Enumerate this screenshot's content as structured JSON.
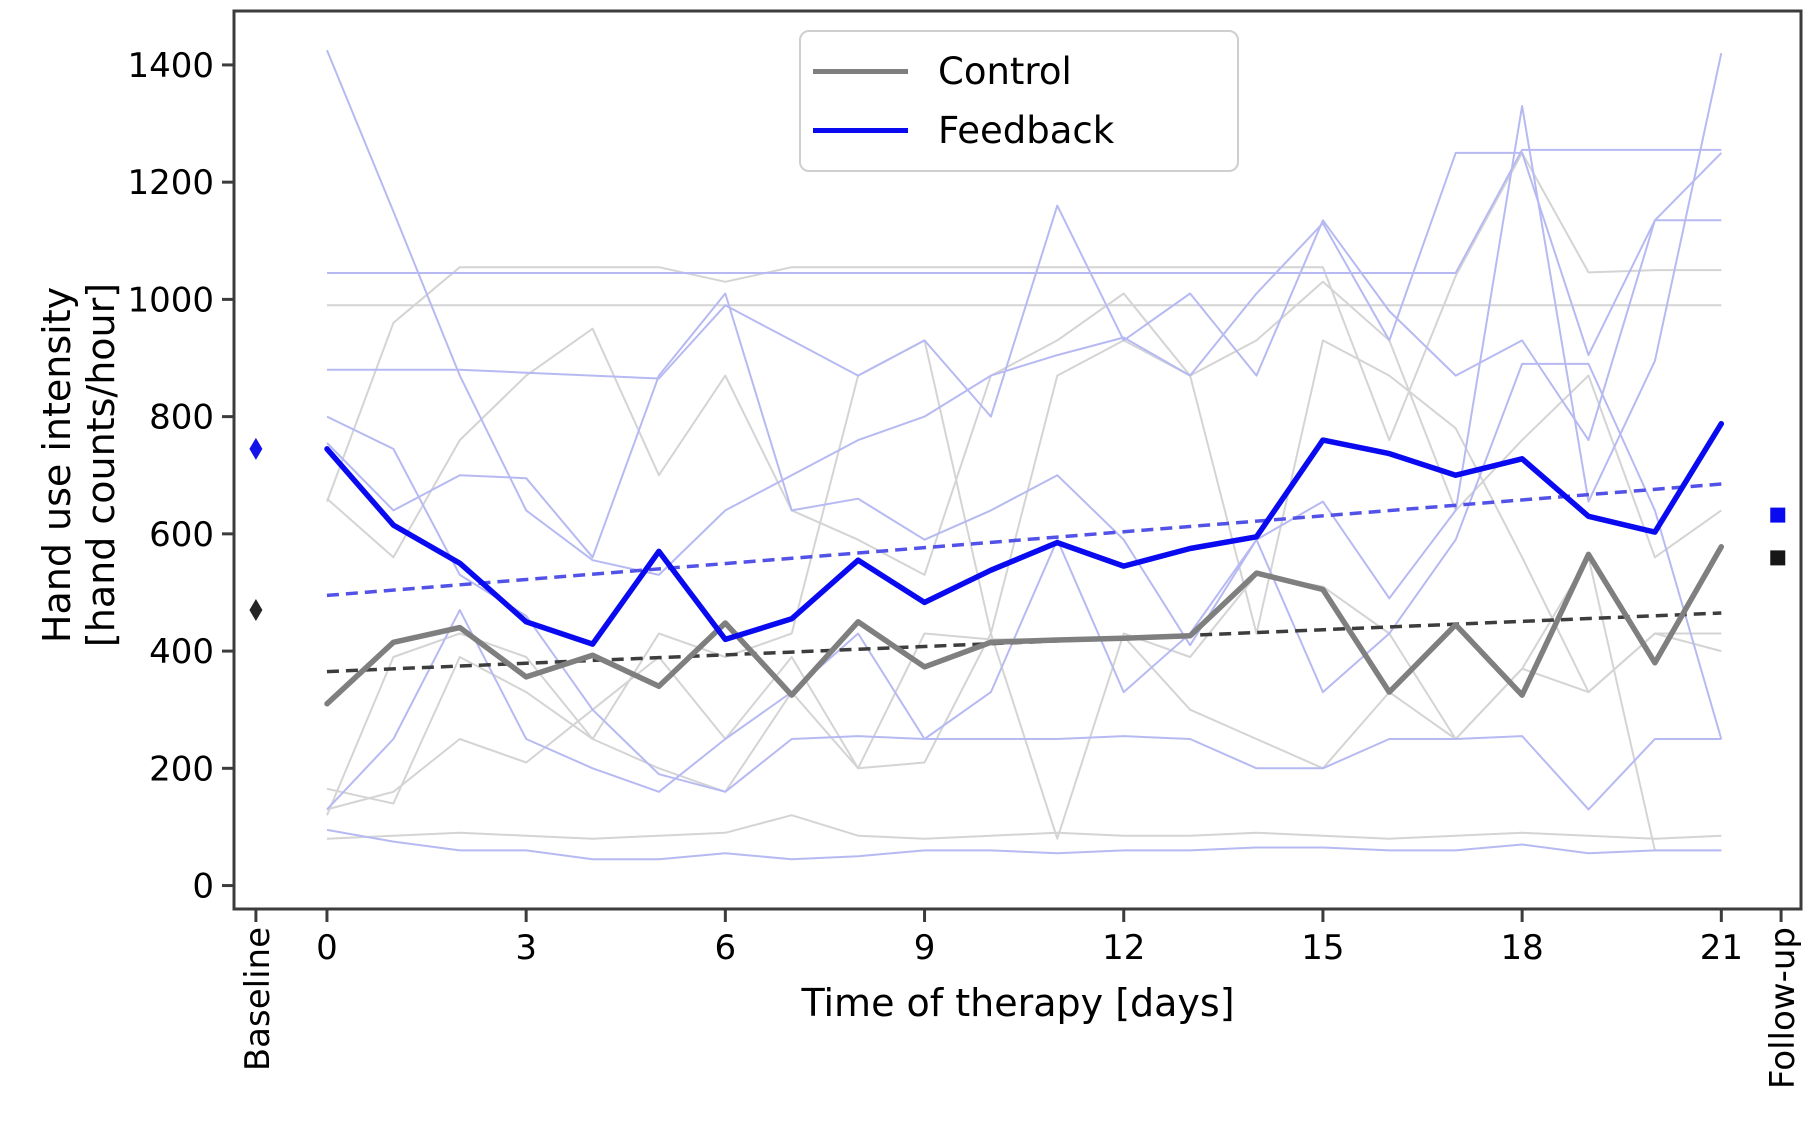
{
  "chart_data": {
    "type": "line",
    "title": "",
    "xlabel": "Time of therapy [days]",
    "ylabel": [
      "Hand use intensity",
      "[hand counts/hour]"
    ],
    "x_tick_days": [
      0,
      3,
      6,
      9,
      12,
      15,
      18,
      21
    ],
    "x_category_ticks": [
      {
        "label": "Baseline",
        "day": -1.07
      },
      {
        "label": "Follow-up",
        "day": 21.9
      }
    ],
    "y_ticks": [
      0,
      200,
      400,
      600,
      800,
      1000,
      1200,
      1400
    ],
    "xlim_days": [
      -1.4,
      22.2
    ],
    "ylim": [
      -40,
      1492
    ],
    "grid": false,
    "legend": {
      "position": "upper center",
      "items": [
        {
          "label": "Control",
          "color": "#7f7f7f"
        },
        {
          "label": "Feedback",
          "color": "#0a0af0"
        }
      ]
    },
    "days": [
      0,
      1,
      2,
      3,
      4,
      5,
      6,
      7,
      8,
      9,
      10,
      11,
      12,
      13,
      14,
      15,
      16,
      17,
      18,
      19,
      20,
      21
    ],
    "series": [
      {
        "name": "Control",
        "color": "#7f7f7f",
        "width": 5.5,
        "values": [
          310,
          415,
          440,
          356,
          393,
          340,
          448,
          325,
          450,
          373,
          415,
          419,
          422,
          426,
          533,
          505,
          330,
          445,
          325,
          565,
          380,
          578
        ]
      },
      {
        "name": "Feedback",
        "color": "#0a0af0",
        "width": 5.5,
        "values": [
          745,
          615,
          550,
          450,
          412,
          570,
          420,
          455,
          555,
          483,
          538,
          585,
          545,
          575,
          595,
          760,
          737,
          700,
          728,
          630,
          603,
          788
        ]
      }
    ],
    "trend_lines": [
      {
        "name": "Control trend",
        "color": "#3d3d3d",
        "start_day": 0,
        "end_day": 21,
        "start_value": 365,
        "end_value": 465,
        "dash": "12 7",
        "width": 3.5
      },
      {
        "name": "Feedback trend",
        "color": "#5252e8",
        "start_day": 0,
        "end_day": 21,
        "start_value": 495,
        "end_value": 685,
        "dash": "12 7",
        "width": 3.5
      }
    ],
    "baseline_markers": [
      {
        "series": "Feedback",
        "value": 745,
        "color": "#1414e8",
        "shape": "thin-diamond",
        "day": -1.07
      },
      {
        "series": "Control",
        "value": 470,
        "color": "#262626",
        "shape": "thin-diamond",
        "day": -1.07
      }
    ],
    "followup_markers": [
      {
        "series": "Feedback",
        "value": 632,
        "color": "#0a0af0",
        "shape": "square",
        "day": 21.85
      },
      {
        "series": "Control",
        "value": 559,
        "color": "#161616",
        "shape": "square",
        "day": 21.85
      }
    ],
    "individual_lines": {
      "feedback_color": "#b7baf2",
      "control_color": "#d4d4d4",
      "width": 2,
      "feedback": [
        [
          1425,
          1150,
          870,
          640,
          555,
          530,
          640,
          700,
          760,
          800,
          870,
          905,
          935,
          870,
          1010,
          1130,
          930,
          1250,
          1250,
          905,
          1135,
          1250
        ],
        [
          1045,
          1045,
          1045,
          1045,
          1045,
          1045,
          1045,
          1045,
          1045,
          1045,
          1045,
          1045,
          1045,
          1045,
          1045,
          1045,
          1045,
          1045,
          1255,
          1255,
          1255,
          1255
        ],
        [
          880,
          880,
          880,
          875,
          870,
          865,
          990,
          930,
          870,
          930,
          800,
          1160,
          930,
          1010,
          870,
          1135,
          980,
          870,
          930,
          760,
          1135,
          1135
        ],
        [
          800,
          745,
          530,
          460,
          300,
          190,
          160,
          250,
          255,
          250,
          250,
          250,
          255,
          250,
          200,
          200,
          250,
          250,
          255,
          130,
          250,
          250
        ],
        [
          95,
          75,
          60,
          60,
          45,
          45,
          55,
          45,
          50,
          60,
          60,
          55,
          60,
          60,
          65,
          65,
          60,
          60,
          70,
          55,
          60,
          60
        ],
        [
          755,
          640,
          700,
          695,
          560,
          870,
          1010,
          640,
          660,
          590,
          640,
          700,
          590,
          410,
          590,
          655,
          490,
          640,
          1330,
          655,
          895,
          1420
        ],
        [
          130,
          250,
          470,
          250,
          200,
          160,
          250,
          330,
          430,
          250,
          330,
          590,
          330,
          430,
          590,
          330,
          430,
          590,
          890,
          890,
          640,
          250
        ]
      ],
      "control": [
        [
          655,
          960,
          1055,
          1055,
          1055,
          1055,
          1030,
          1055,
          1055,
          1055,
          1055,
          1055,
          1055,
          1055,
          1055,
          1055,
          760,
          1040,
          1250,
          1046,
          1050,
          1050
        ],
        [
          990,
          990,
          990,
          990,
          990,
          990,
          990,
          990,
          990,
          990,
          990,
          990,
          990,
          990,
          990,
          990,
          990,
          990,
          990,
          990,
          990,
          990
        ],
        [
          165,
          140,
          390,
          330,
          250,
          430,
          390,
          430,
          870,
          930,
          430,
          870,
          930,
          870,
          430,
          930,
          870,
          780,
          560,
          330,
          430,
          400
        ],
        [
          120,
          390,
          430,
          390,
          250,
          200,
          160,
          330,
          200,
          430,
          420,
          420,
          425,
          300,
          250,
          200,
          330,
          250,
          370,
          330,
          430,
          430
        ],
        [
          130,
          160,
          250,
          210,
          300,
          390,
          250,
          390,
          200,
          210,
          430,
          80,
          430,
          390,
          530,
          510,
          430,
          250,
          370,
          560,
          60,
          60
        ],
        [
          660,
          560,
          760,
          870,
          950,
          700,
          870,
          640,
          590,
          530,
          870,
          930,
          1010,
          870,
          930,
          1030,
          930,
          640,
          760,
          870,
          560,
          640
        ],
        [
          80,
          85,
          90,
          85,
          80,
          85,
          90,
          120,
          85,
          80,
          85,
          90,
          85,
          85,
          90,
          85,
          80,
          85,
          90,
          85,
          80,
          85
        ]
      ]
    },
    "colors": {
      "spine": "#3c3c3c",
      "text": "#000000",
      "background": "#ffffff"
    }
  }
}
